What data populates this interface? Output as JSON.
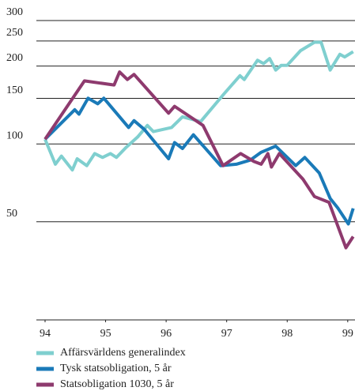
{
  "chart_data": {
    "type": "line",
    "log": true,
    "grid": true,
    "xlim": [
      94,
      99.12
    ],
    "xticks": [
      94,
      95,
      96,
      97,
      98,
      99
    ],
    "ylim": [
      20,
      300
    ],
    "yticks": [
      50,
      100,
      150,
      200,
      250,
      300
    ],
    "series": [
      {
        "name": "Affärsvärldens generalindex",
        "color": "#7fcfcf",
        "x": [
          94.0,
          94.17,
          94.27,
          94.45,
          94.53,
          94.69,
          94.82,
          94.95,
          95.08,
          95.18,
          95.34,
          95.53,
          95.69,
          95.79,
          96.09,
          96.27,
          96.57,
          96.96,
          97.22,
          97.29,
          97.51,
          97.61,
          97.71,
          97.81,
          97.9,
          98.0,
          98.22,
          98.45,
          98.56,
          98.71,
          98.87,
          98.95,
          99.09
        ],
        "values": [
          100,
          80,
          86,
          76,
          84,
          79,
          88,
          85,
          88,
          85,
          93,
          102,
          113,
          107,
          111,
          122,
          117,
          150,
          176,
          170,
          202,
          196,
          205,
          185,
          193,
          193,
          220,
          237,
          237,
          185,
          213,
          208,
          218
        ]
      },
      {
        "name": "Tysk statsobligation, 5 år",
        "color": "#1a7ab8",
        "x": [
          94.0,
          94.49,
          94.56,
          94.71,
          94.87,
          94.97,
          95.38,
          95.47,
          95.64,
          96.04,
          96.14,
          96.27,
          96.45,
          96.9,
          97.16,
          97.39,
          97.57,
          97.81,
          98.14,
          98.29,
          98.53,
          98.71,
          98.84,
          99.01,
          99.09
        ],
        "values": [
          100,
          130,
          125,
          144,
          137,
          144,
          111,
          118,
          109,
          84,
          97,
          92,
          104,
          79,
          80,
          83,
          89,
          94,
          79,
          85,
          74,
          59,
          54,
          47,
          54
        ]
      },
      {
        "name": "Statsobligation 1030, 5 år",
        "color": "#8e3a6e",
        "x": [
          94.0,
          94.65,
          95.14,
          95.23,
          95.36,
          95.47,
          96.04,
          96.14,
          96.61,
          96.94,
          97.23,
          97.45,
          97.57,
          97.68,
          97.74,
          97.87,
          98.26,
          98.45,
          98.69,
          98.97,
          99.09
        ],
        "values": [
          100,
          168,
          162,
          182,
          170,
          178,
          126,
          134,
          113,
          79,
          88,
          82,
          80,
          88,
          78,
          88,
          70,
          60,
          57,
          38,
          42
        ]
      }
    ]
  }
}
